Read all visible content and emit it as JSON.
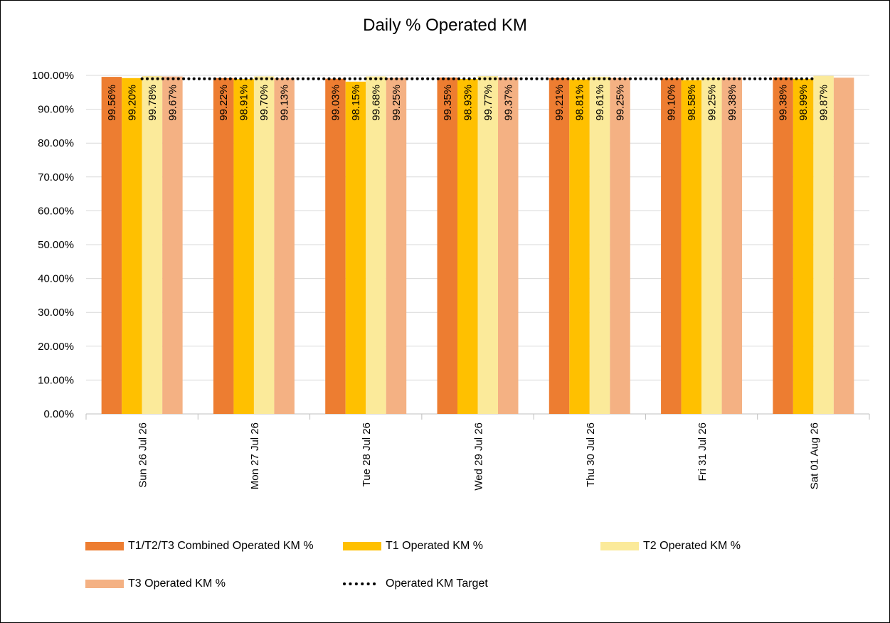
{
  "chart_data": {
    "type": "bar",
    "title": "Daily % Operated KM",
    "categories": [
      "Sun 26 Jul 26",
      "Mon 27 Jul 26",
      "Tue 28 Jul 26",
      "Wed 29 Jul 26",
      "Thu 30 Jul 26",
      "Fri 31 Jul 26",
      "Sat 01 Aug 26"
    ],
    "series": [
      {
        "name": "T1/T2/T3 Combined Operated KM %",
        "color": "#ED7D31",
        "values": [
          99.56,
          99.22,
          99.03,
          99.35,
          99.21,
          99.1,
          99.38
        ],
        "labels": [
          "99.56%",
          "99.22%",
          "99.03%",
          "99.35%",
          "99.21%",
          "99.10%",
          "99.38%"
        ]
      },
      {
        "name": "T1 Operated KM %",
        "color": "#FFC000",
        "values": [
          99.2,
          98.91,
          98.15,
          98.93,
          98.81,
          98.58,
          98.99
        ],
        "labels": [
          "99.20%",
          "98.91%",
          "98.15%",
          "98.93%",
          "98.81%",
          "98.58%",
          "98.99%"
        ]
      },
      {
        "name": "T2 Operated KM %",
        "color": "#FBEA9A",
        "values": [
          99.78,
          99.7,
          99.68,
          99.77,
          99.61,
          99.25,
          99.87
        ],
        "labels": [
          "99.78%",
          "99.70%",
          "99.68%",
          "99.77%",
          "99.61%",
          "99.25%",
          "99.87%"
        ]
      },
      {
        "name": "T3 Operated KM %",
        "color": "#F4B183",
        "values": [
          99.67,
          99.13,
          99.25,
          99.37,
          99.25,
          99.38,
          99.32
        ],
        "labels": [
          "99.67%",
          "99.13%",
          "99.25%",
          "99.37%",
          "99.25%",
          "99.38%",
          ""
        ]
      }
    ],
    "target": {
      "name": "Operated KM Target",
      "value": 99.0,
      "style": "dotted",
      "color": "#000000"
    },
    "ylim": [
      0,
      100
    ],
    "yticks": [
      0,
      10,
      20,
      30,
      40,
      50,
      60,
      70,
      80,
      90,
      100
    ],
    "ytick_labels": [
      "0.00%",
      "10.00%",
      "20.00%",
      "30.00%",
      "40.00%",
      "50.00%",
      "60.00%",
      "70.00%",
      "80.00%",
      "90.00%",
      "100.00%"
    ],
    "xlabel": "",
    "ylabel": "",
    "grid": true,
    "legend_position": "bottom"
  }
}
